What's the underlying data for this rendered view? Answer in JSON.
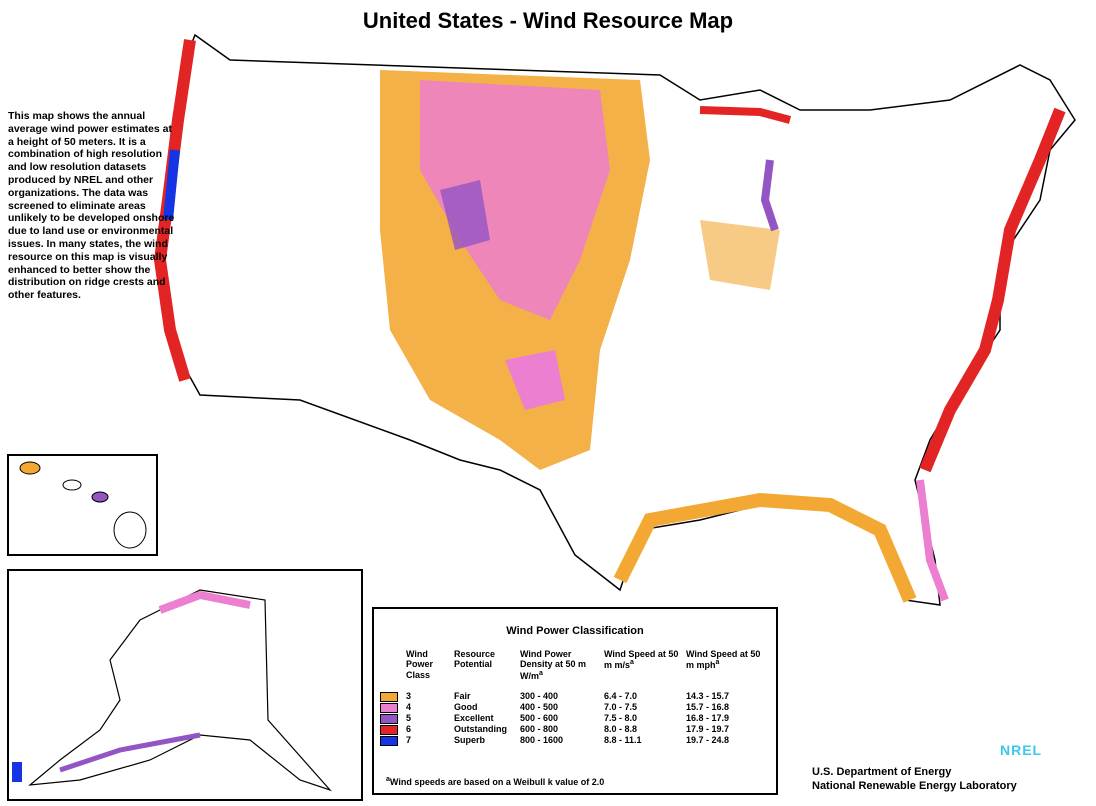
{
  "title": "United States - Wind Resource Map",
  "description": "This map shows the annual average wind power estimates at a height of 50 meters. It is a combination of high resolution and low resolution datasets produced by NREL and other organizations. The data was screened to eliminate areas unlikely to be developed onshore due to land use or environmental issues. In many states, the wind resource on this map is visually enhanced to better show the distribution on ridge crests and other features.",
  "legend": {
    "title": "Wind Power Classification",
    "footnote_mark": "a",
    "headers": [
      "Wind Power Class",
      "Resource Potential",
      "Wind Power Density at 50 m W/m",
      "Wind Speed at 50 m m/s",
      "Wind Speed at 50 m mph"
    ],
    "rows": [
      {
        "color": "#f2a833",
        "class": "3",
        "potential": "Fair",
        "density": "300 - 400",
        "speed_ms": "6.4 - 7.0",
        "speed_mph": "14.3 - 15.7"
      },
      {
        "color": "#ec7fcf",
        "class": "4",
        "potential": "Good",
        "density": "400 - 500",
        "speed_ms": "7.0 - 7.5",
        "speed_mph": "15.7 - 16.8"
      },
      {
        "color": "#9354c4",
        "class": "5",
        "potential": "Excellent",
        "density": "500 - 600",
        "speed_ms": "7.5 - 8.0",
        "speed_mph": "16.8 - 17.9"
      },
      {
        "color": "#e32424",
        "class": "6",
        "potential": "Outstanding",
        "density": "600 - 800",
        "speed_ms": "8.0 - 8.8",
        "speed_mph": "17.9 - 19.7"
      },
      {
        "color": "#1434e6",
        "class": "7",
        "potential": "Superb",
        "density": "800 - 1600",
        "speed_ms": "8.8 - 11.1",
        "speed_mph": "19.7 - 24.8"
      }
    ],
    "footnote": "Wind speeds are based on a Weibull k value of 2.0"
  },
  "logo": "NREL",
  "credits": [
    "U.S. Department of Energy",
    "National Renewable Energy Laboratory"
  ]
}
